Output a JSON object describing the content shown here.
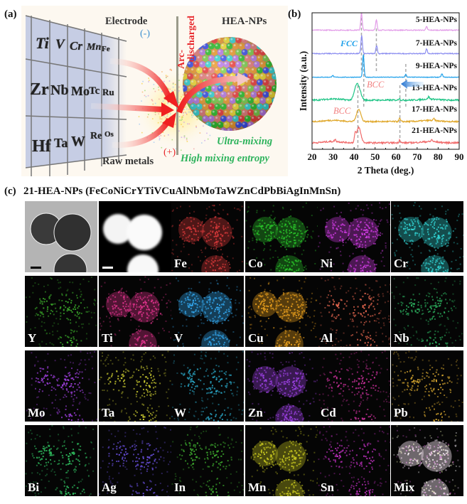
{
  "panel_labels": {
    "a": "(a)",
    "b": "(b)",
    "c": "(c)"
  },
  "panel_a": {
    "periodic_table": [
      [
        "Ti",
        "V",
        "Cr",
        "Mn",
        "Fe"
      ],
      [
        "Zr",
        "Nb",
        "Mo",
        "Tc",
        "Ru"
      ],
      [
        "Hf",
        "Ta",
        "W",
        "Re",
        "Os"
      ]
    ],
    "electrode_label": "Electrode",
    "minus_label": "(-)",
    "plus_label": "(+)",
    "arc_label_1": "Arc-",
    "arc_label_2": "discharged",
    "raw_metals_label": "Raw metals",
    "hea_label": "HEA-NPs",
    "ultra_mixing_label": "Ultra-mixing",
    "entropy_label": "High mixing entropy",
    "colors": {
      "minus": "#3a8fd0",
      "plus": "#e8262a",
      "arc": "#e8262a",
      "green_text": "#2db35c"
    }
  },
  "panel_c": {
    "title": "21-HEA-NPs (FeCoNiCrYTiVCuAlNbMoTaWZnCdPbBiAgInMnSn)",
    "tiles": [
      {
        "label": "",
        "kind": "tem",
        "color": "#888888"
      },
      {
        "label": "",
        "kind": "haadf",
        "color": "#ffffff"
      },
      {
        "label": "Fe",
        "kind": "map",
        "color": "#d8383a"
      },
      {
        "label": "Co",
        "kind": "map",
        "color": "#2ac42a"
      },
      {
        "label": "Ni",
        "kind": "map",
        "color": "#d23ce6"
      },
      {
        "label": "Cr",
        "kind": "map",
        "color": "#32d4d4"
      },
      {
        "label": "Y",
        "kind": "map-diffuse",
        "color": "#3aa82a"
      },
      {
        "label": "Ti",
        "kind": "map",
        "color": "#e0338c"
      },
      {
        "label": "V",
        "kind": "map",
        "color": "#33a8f0"
      },
      {
        "label": "Cu",
        "kind": "map",
        "color": "#eda21e"
      },
      {
        "label": "Al",
        "kind": "map-diffuse",
        "color": "#e86850"
      },
      {
        "label": "Nb",
        "kind": "map-diffuse",
        "color": "#2aa85a"
      },
      {
        "label": "Mo",
        "kind": "map-diffuse",
        "color": "#a040e0"
      },
      {
        "label": "Ta",
        "kind": "map-diffuse",
        "color": "#c8c830"
      },
      {
        "label": "W",
        "kind": "map-diffuse",
        "color": "#2aa8c8"
      },
      {
        "label": "Zn",
        "kind": "map",
        "color": "#9a40e0"
      },
      {
        "label": "Cd",
        "kind": "map-diffuse",
        "color": "#c8309a"
      },
      {
        "label": "Pb",
        "kind": "map-diffuse",
        "color": "#d8a830"
      },
      {
        "label": "Bi",
        "kind": "map-diffuse",
        "color": "#30c060"
      },
      {
        "label": "Ag",
        "kind": "map-diffuse",
        "color": "#6a50e0"
      },
      {
        "label": "In",
        "kind": "map-diffuse",
        "color": "#40b030"
      },
      {
        "label": "Mn",
        "kind": "map",
        "color": "#c8c820"
      },
      {
        "label": "Sn",
        "kind": "map-diffuse",
        "color": "#c030c0"
      },
      {
        "label": "Mix",
        "kind": "mix",
        "color": "#f0e0e0"
      }
    ]
  },
  "chart_data": {
    "type": "line",
    "title": "",
    "xlabel": "2 Theta (deg.)",
    "ylabel": "Intensity (a.u.)",
    "xlim": [
      20,
      90
    ],
    "xticks": [
      20,
      30,
      40,
      50,
      60,
      70,
      80,
      90
    ],
    "grid": false,
    "series": [
      {
        "name": "5-HEA-NPs",
        "color": "#e29be8",
        "peaks": [
          [
            43.5,
            1.0
          ],
          [
            50.6,
            0.6
          ],
          [
            74.5,
            0.2
          ]
        ]
      },
      {
        "name": "7-HEA-NPs",
        "color": "#8c8ef0",
        "peaks": [
          [
            43.6,
            1.0
          ],
          [
            50.7,
            0.45
          ],
          [
            74.5,
            0.25
          ]
        ]
      },
      {
        "name": "9-HEA-NPs",
        "color": "#1ea0ea",
        "peaks": [
          [
            44.4,
            1.0
          ],
          [
            64.6,
            0.12
          ],
          [
            81.8,
            0.15
          ],
          [
            29.8,
            0.08
          ]
        ]
      },
      {
        "name": "13-HEA-NPs",
        "color": "#1fc486",
        "peaks": [
          [
            41.0,
            0.8
          ],
          [
            42.5,
            0.55
          ],
          [
            61.5,
            0.12
          ],
          [
            75.5,
            0.15
          ]
        ]
      },
      {
        "name": "17-HEA-NPs",
        "color": "#e0a82c",
        "peaks": [
          [
            42.2,
            0.8
          ],
          [
            61.7,
            0.2
          ],
          [
            78.0,
            0.12
          ]
        ]
      },
      {
        "name": "21-HEA-NPs",
        "color": "#f06a6a",
        "peaks": [
          [
            42.2,
            0.9
          ],
          [
            40.5,
            0.4
          ],
          [
            61.7,
            0.18
          ],
          [
            77.0,
            0.12
          ],
          [
            31.0,
            0.12
          ]
        ]
      }
    ],
    "reference_lines": [
      43.5,
      50.6,
      44.6,
      64.6,
      41.8,
      61.8
    ],
    "annotations": [
      {
        "text": "FCC",
        "color": "#1ea0ea"
      },
      {
        "text": "BCC",
        "color": "#f28080"
      },
      {
        "text": "BCC",
        "color": "#f28080"
      }
    ],
    "arrow": {
      "direction": "left",
      "color": "#3a8fd0"
    }
  }
}
